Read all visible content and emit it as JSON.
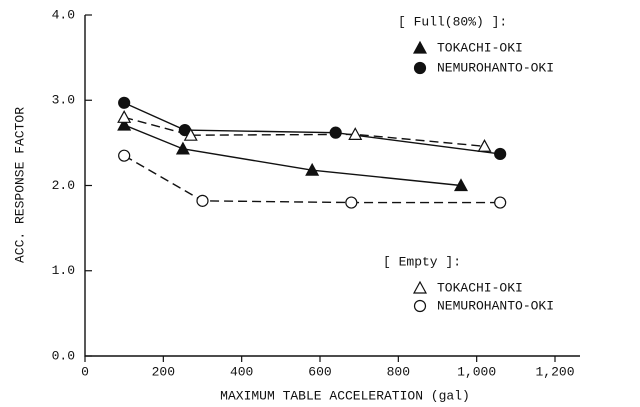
{
  "chart_data": {
    "type": "line",
    "x_label": "MAXIMUM TABLE ACCELERATION (gal)",
    "y_label": "ACC. RESPONSE FACTOR",
    "xlim": [
      0,
      1200
    ],
    "xticks": [
      0,
      200,
      400,
      600,
      800,
      {
        "value": 1000,
        "label": "1,000"
      },
      {
        "value": 1200,
        "label": "1,200"
      }
    ],
    "ylim": [
      0,
      4
    ],
    "yticks": [
      {
        "value": 0,
        "label": "0.0"
      },
      {
        "value": 1,
        "label": "1.0"
      },
      {
        "value": 2,
        "label": "2.0"
      },
      {
        "value": 3,
        "label": "3.0"
      },
      {
        "value": 4,
        "label": "4.0"
      }
    ],
    "legend_titles": [
      "[ Full(80%) ]:",
      "[ Empty ]:"
    ],
    "series": [
      {
        "name": "TOKACHI-OKI",
        "color": "#111111",
        "marker": "triangle",
        "filled": true,
        "dashed": false,
        "x": [
          100,
          250,
          580,
          960
        ],
        "values": [
          2.71,
          2.43,
          2.18,
          2.0
        ]
      },
      {
        "name": "NEMUROHANTO-OKI",
        "color": "#111111",
        "marker": "circle",
        "filled": true,
        "dashed": false,
        "x": [
          100,
          255,
          640,
          1060
        ],
        "values": [
          2.97,
          2.65,
          2.62,
          2.37
        ]
      },
      {
        "name": "TOKACHI-OKI",
        "color": "#111111",
        "marker": "triangle",
        "filled": false,
        "dashed": true,
        "x": [
          100,
          270,
          690,
          1020
        ],
        "values": [
          2.8,
          2.59,
          2.6,
          2.46
        ]
      },
      {
        "name": "NEMUROHANTO-OKI",
        "color": "#111111",
        "marker": "circle",
        "filled": false,
        "dashed": true,
        "x": [
          100,
          300,
          680,
          1060
        ],
        "values": [
          2.35,
          1.82,
          1.8,
          1.8
        ]
      }
    ]
  }
}
